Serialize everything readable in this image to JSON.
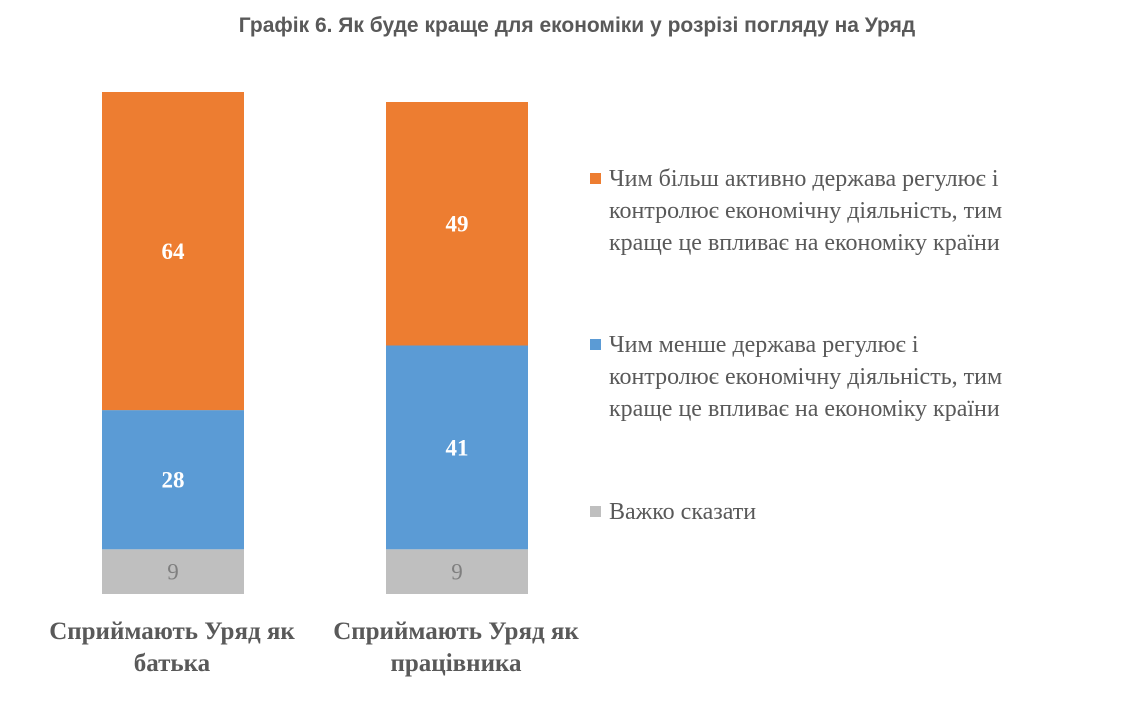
{
  "chart_data": {
    "type": "bar",
    "stacked": true,
    "title": "Графік 6. Як буде краще для економіки у розрізі погляду на Уряд",
    "categories": [
      "Сприймають Уряд як\nбатька",
      "Сприймають Уряд як\nпрацівника"
    ],
    "series": [
      {
        "name": "Чим менше держава регулює і\nконтролює економічну діяльність, тим\nкраще це впливає на економіку країни",
        "color": "#5B9BD5",
        "values": [
          28,
          41
        ],
        "labels": [
          "28",
          "41"
        ]
      },
      {
        "name": "Чим більш активно держава регулює і\nконтролює економічну діяльність, тим\nкраще це впливає на економіку країни",
        "color": "#ED7D31",
        "values": [
          64,
          49
        ],
        "labels": [
          "64",
          "49"
        ]
      },
      {
        "name": "Важко сказати",
        "color": "#BFBFBF",
        "values": [
          9,
          9
        ],
        "labels": [
          "9",
          "9"
        ]
      }
    ],
    "legend_order": [
      1,
      0,
      2
    ],
    "legend_position": "right",
    "grid": false
  }
}
